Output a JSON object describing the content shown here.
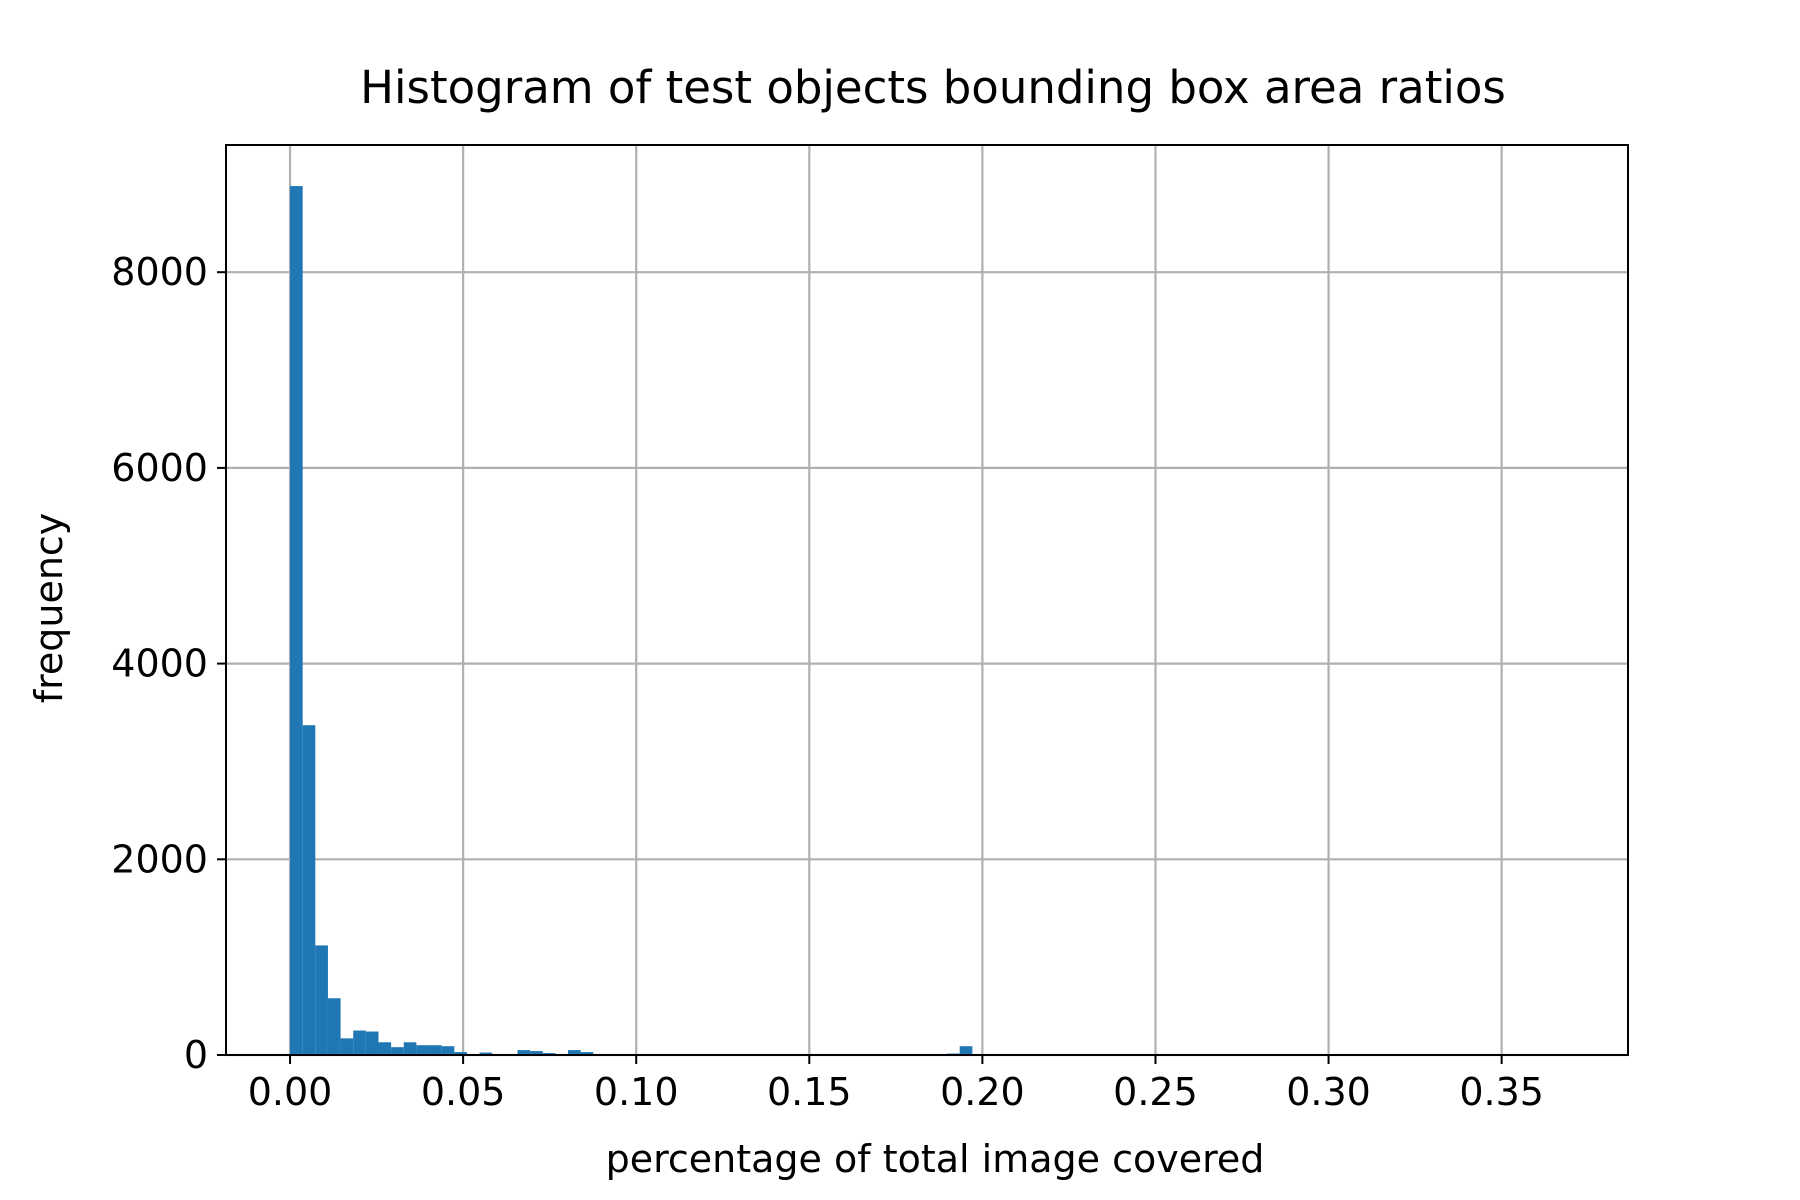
{
  "chart_data": {
    "type": "bar",
    "title": "Histogram of test objects bounding box area ratios",
    "xlabel": "percentage of total image covered",
    "ylabel": "frequency",
    "xlim": [
      -0.0185,
      0.3865
    ],
    "ylim": [
      0,
      9300
    ],
    "grid": true,
    "bar_color": "#1f77b4",
    "grid_color": "#b0b0b0",
    "x_ticks": [
      0.0,
      0.05,
      0.1,
      0.15,
      0.2,
      0.25,
      0.3,
      0.35
    ],
    "x_tick_labels": [
      "0.00",
      "0.05",
      "0.10",
      "0.15",
      "0.20",
      "0.25",
      "0.30",
      "0.35"
    ],
    "y_ticks": [
      0,
      2000,
      4000,
      6000,
      8000
    ],
    "y_tick_labels": [
      "0",
      "2000",
      "4000",
      "6000",
      "8000"
    ],
    "bin_width": 0.00365,
    "bin_starts": [
      0.0,
      0.00365,
      0.0073,
      0.01095,
      0.0146,
      0.01825,
      0.0219,
      0.02555,
      0.0292,
      0.03285,
      0.0365,
      0.04015,
      0.0438,
      0.04745,
      0.0511,
      0.05475,
      0.0584,
      0.06205,
      0.0657,
      0.06935,
      0.073,
      0.07665,
      0.0803,
      0.08395,
      0.0876,
      0.1898,
      0.19345
    ],
    "values": [
      8880,
      3370,
      1120,
      580,
      170,
      250,
      240,
      130,
      80,
      130,
      100,
      100,
      90,
      30,
      5,
      25,
      5,
      10,
      50,
      40,
      20,
      5,
      50,
      30,
      5,
      15,
      90
    ]
  }
}
